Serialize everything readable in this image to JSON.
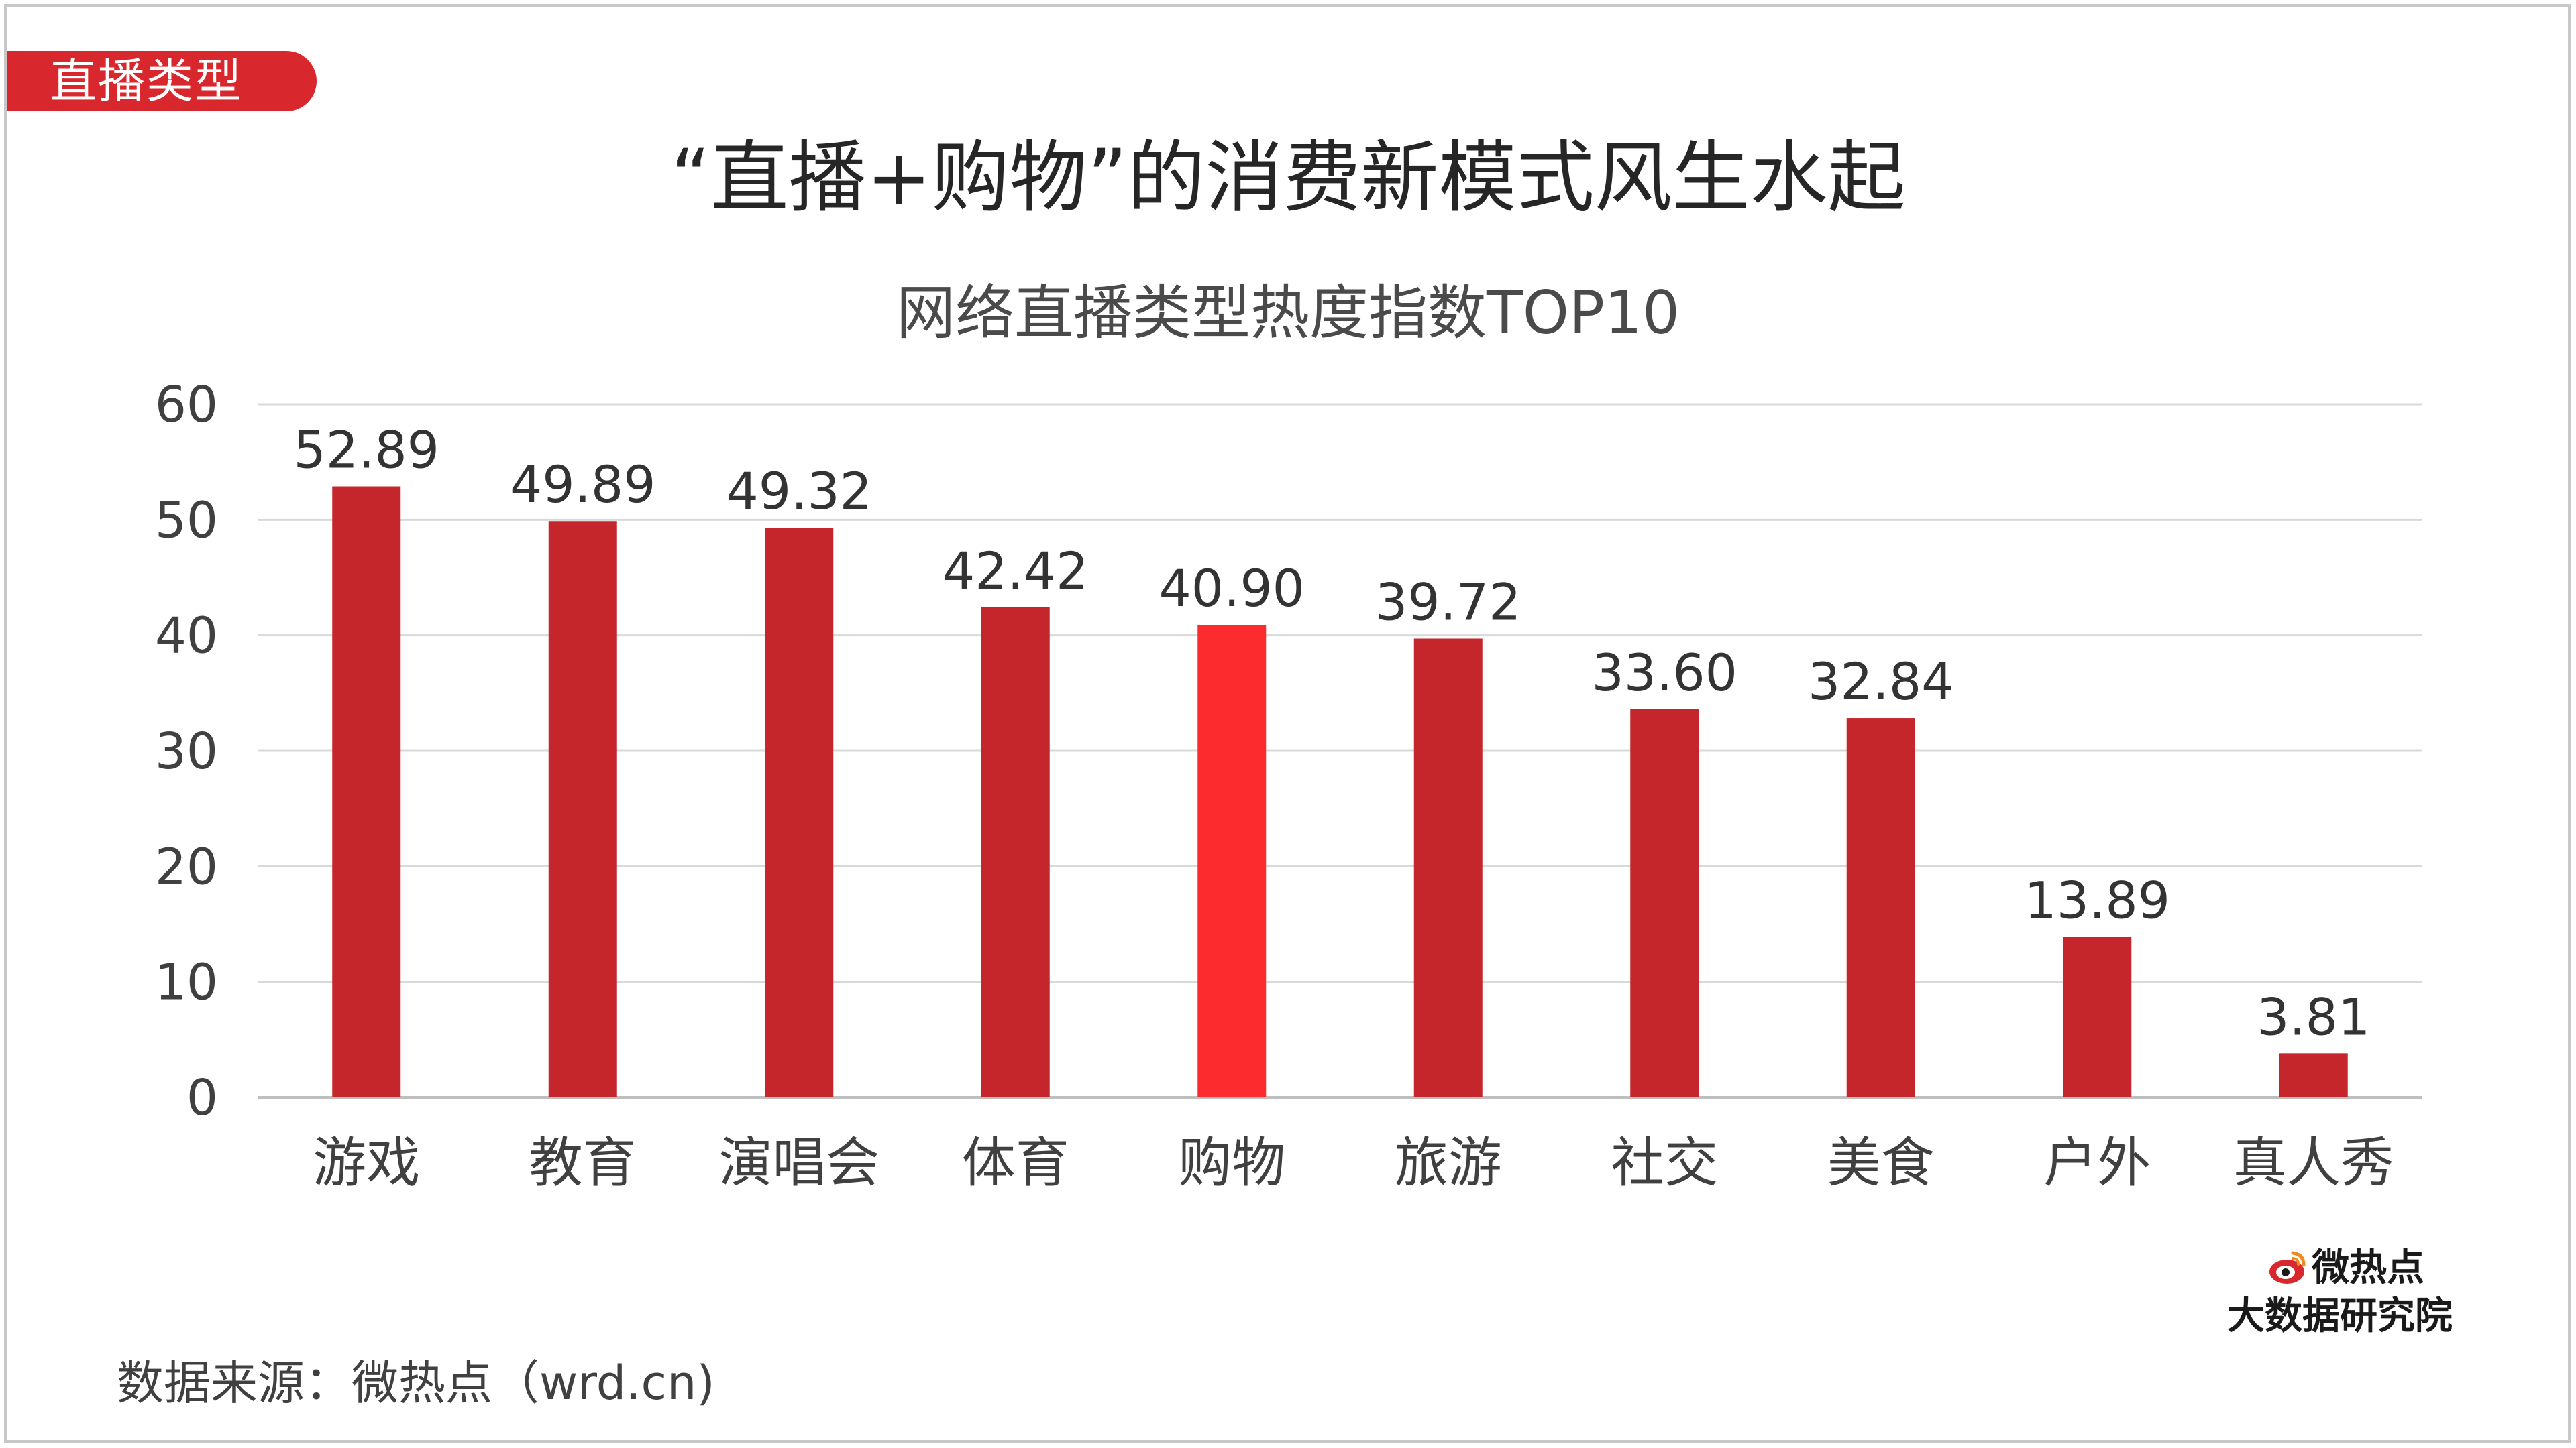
{
  "tag_label": "直播类型",
  "main_title": "“直播+购物”的消费新模式风生水起",
  "source_text": "数据来源：微热点（wrd.cn)",
  "logo": {
    "name": "微热点",
    "org": "大数据研究院",
    "icon": "weibo-eye-icon"
  },
  "colors": {
    "bar": "#c4262b",
    "bar_highlight": "#fb2b2e",
    "tag": "#d9282d",
    "grid": "#d9d9d9"
  },
  "chart_data": {
    "type": "bar",
    "title": "网络直播类型热度指数TOP10",
    "categories": [
      "游戏",
      "教育",
      "演唱会",
      "体育",
      "购物",
      "旅游",
      "社交",
      "美食",
      "户外",
      "真人秀"
    ],
    "values": [
      52.89,
      49.89,
      49.32,
      42.42,
      40.9,
      39.72,
      33.6,
      32.84,
      13.89,
      3.81
    ],
    "value_labels": [
      "52.89",
      "49.89",
      "49.32",
      "42.42",
      "40.90",
      "39.72",
      "33.60",
      "32.84",
      "13.89",
      "3.81"
    ],
    "highlight_category": "购物",
    "ylim": [
      0,
      60
    ],
    "yticks": [
      0,
      10,
      20,
      30,
      40,
      50,
      60
    ],
    "grid": true,
    "legend": "none",
    "xlabel": "",
    "ylabel": ""
  }
}
